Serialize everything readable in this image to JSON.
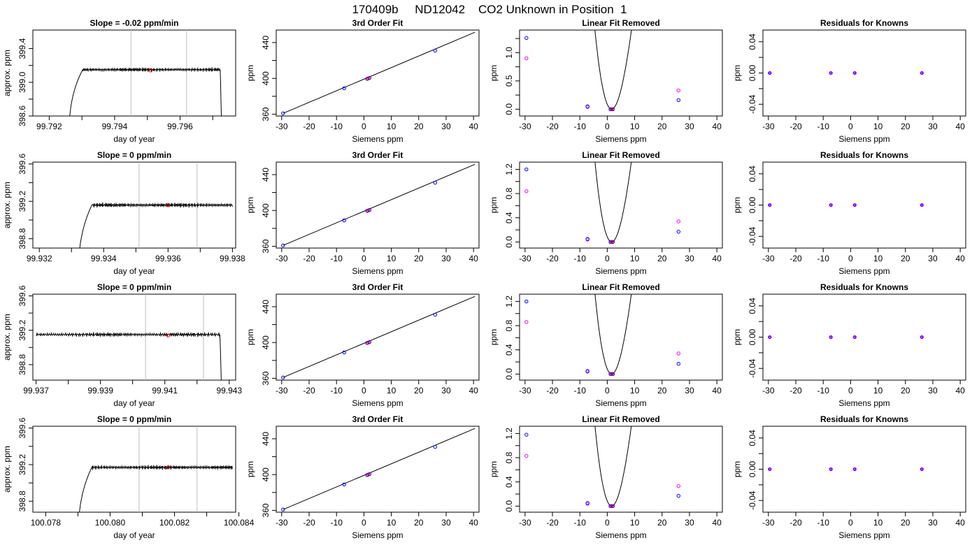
{
  "title": "170409b     ND12042    CO2 Unknown in Position  1",
  "colors": {
    "axis": "#000000",
    "curve": "#000000",
    "known_points": "#0000ff",
    "fit_points": "#ff00ff",
    "unknown_point": "#ff0000",
    "window_lines": "#bebebe"
  },
  "chart_data": [
    {
      "type": "line",
      "title": "Slope =  -0.02  ppm/min",
      "xlabel": "day of year",
      "ylabel": "approx. ppm",
      "xlim": [
        99.7915,
        99.7977
      ],
      "ylim": [
        398.6,
        399.62
      ],
      "xticks": [
        99.792,
        99.794,
        99.796
      ],
      "xtick_labels": [
        "99.792",
        "99.794",
        "99.796"
      ],
      "xminor_ticks": [
        99.793,
        99.795,
        99.797
      ],
      "yticks": [
        398.6,
        399.0,
        399.4
      ],
      "ytick_labels": [
        "398.6",
        "399.0",
        "399.4"
      ],
      "yminor_ticks": [
        398.8,
        399.2
      ],
      "window_lines": [
        99.7945,
        99.7962
      ],
      "trace_start": 99.7926,
      "trace_end": 99.7973,
      "plateau": 399.15,
      "mean_point": {
        "x": 99.7951,
        "y": 399.14
      },
      "grid": false
    },
    {
      "type": "scatter",
      "title": "3rd Order Fit",
      "xlabel": "Siemens ppm",
      "ylabel": "ppm",
      "xlim": [
        -32,
        42
      ],
      "ylim": [
        358,
        454
      ],
      "xticks": [
        -30,
        -20,
        -10,
        0,
        10,
        20,
        30,
        40
      ],
      "xtick_labels": [
        "-30",
        "-20",
        "-10",
        "0",
        "10",
        "20",
        "30",
        "40"
      ],
      "yticks": [
        360,
        400,
        440
      ],
      "ytick_labels": [
        "360",
        "400",
        "440"
      ],
      "yminor_ticks": [
        380,
        420
      ],
      "fit_line": [
        {
          "x": -29.5,
          "y": 361
        },
        {
          "x": 40.5,
          "y": 451.5
        }
      ],
      "points": [
        {
          "x": -29.5,
          "y": 361
        },
        {
          "x": -7.2,
          "y": 389
        },
        {
          "x": 1.2,
          "y": 399.5
        },
        {
          "x": 2.0,
          "y": 400.5
        },
        {
          "x": 26,
          "y": 431
        }
      ],
      "unknown": {
        "x": 1.6,
        "y": 400
      },
      "grid": false
    },
    {
      "type": "scatter",
      "title": "Linear Fit Removed",
      "xlabel": "Siemens ppm",
      "ylabel": "ppm",
      "xlim": [
        -32,
        42
      ],
      "ylim": [
        -0.12,
        1.4
      ],
      "xticks": [
        -30,
        -20,
        -10,
        0,
        10,
        20,
        30,
        40
      ],
      "xtick_labels": [
        "-30",
        "-20",
        "-10",
        "0",
        "10",
        "20",
        "30",
        "40"
      ],
      "yticks": [
        0.0,
        0.5,
        1.0
      ],
      "ytick_labels": [
        "0.0",
        "0.5",
        "1.0"
      ],
      "yminor_ticks": [
        0.25,
        0.75,
        1.25
      ],
      "cubic": {
        "A": 0.0009,
        "r1": 1.6,
        "r2": 26,
        "x_start": -29.6,
        "x_end": 40.5
      },
      "known_points": [
        {
          "x": -29.5,
          "y": 1.26
        },
        {
          "x": -7.2,
          "y": 0.05
        },
        {
          "x": 1.2,
          "y": 0.0
        },
        {
          "x": 2.0,
          "y": 0.0
        },
        {
          "x": 26,
          "y": 0.16
        }
      ],
      "fit_points": [
        {
          "x": -29.5,
          "y": 0.9
        },
        {
          "x": -7.2,
          "y": 0.04
        },
        {
          "x": 1.2,
          "y": 0.0
        },
        {
          "x": 2.0,
          "y": 0.0
        },
        {
          "x": 26,
          "y": 0.33
        }
      ],
      "unknown": {
        "x": 1.6,
        "y": 0.0
      },
      "grid": false
    },
    {
      "type": "scatter",
      "title": "Residuals for Knowns",
      "xlabel": "Siemens ppm",
      "ylabel": "ppm",
      "xlim": [
        -32,
        42
      ],
      "ylim": [
        -0.055,
        0.055
      ],
      "xticks": [
        -30,
        -20,
        -10,
        0,
        10,
        20,
        30,
        40
      ],
      "xtick_labels": [
        "-30",
        "-20",
        "-10",
        "0",
        "10",
        "20",
        "30",
        "40"
      ],
      "yticks": [
        -0.04,
        0.0,
        0.04
      ],
      "ytick_labels": [
        "-0.04",
        "0.00",
        "0.04"
      ],
      "yminor_ticks": [
        -0.02,
        0.02
      ],
      "points": [
        {
          "x": -29.5,
          "y": 0
        },
        {
          "x": -7.2,
          "y": 0
        },
        {
          "x": 1.5,
          "y": 0
        },
        {
          "x": 26,
          "y": 0
        }
      ],
      "grid": false
    },
    {
      "type": "line",
      "title": "Slope =  0  ppm/min",
      "xlabel": "day of year",
      "ylabel": "approx. ppm",
      "xlim": [
        99.9318,
        99.9381
      ],
      "ylim": [
        398.7,
        399.62
      ],
      "xticks": [
        99.932,
        99.934,
        99.936,
        99.938
      ],
      "xtick_labels": [
        "99.932",
        "99.934",
        "99.936",
        "99.938"
      ],
      "xminor_ticks": [
        99.933,
        99.935,
        99.937
      ],
      "yticks": [
        398.8,
        399.2,
        399.6
      ],
      "ytick_labels": [
        "398.8",
        "399.2",
        "399.6"
      ],
      "yminor_ticks": [
        399.0,
        399.4
      ],
      "window_lines": [
        99.9351,
        99.9369
      ],
      "trace_start": 99.9332,
      "trace_end": 99.938,
      "plateau": 399.16,
      "mean_point": {
        "x": 99.936,
        "y": 399.16
      },
      "grid": false
    },
    {
      "type": "scatter",
      "title": "3rd Order Fit",
      "xlabel": "Siemens ppm",
      "ylabel": "ppm",
      "xlim": [
        -32,
        42
      ],
      "ylim": [
        358,
        454
      ],
      "xticks": [
        -30,
        -20,
        -10,
        0,
        10,
        20,
        30,
        40
      ],
      "xtick_labels": [
        "-30",
        "-20",
        "-10",
        "0",
        "10",
        "20",
        "30",
        "40"
      ],
      "yticks": [
        360,
        400,
        440
      ],
      "ytick_labels": [
        "360",
        "400",
        "440"
      ],
      "yminor_ticks": [
        380,
        420
      ],
      "fit_line": [
        {
          "x": -29.5,
          "y": 361
        },
        {
          "x": 40.5,
          "y": 451.5
        }
      ],
      "points": [
        {
          "x": -29.5,
          "y": 361
        },
        {
          "x": -7.2,
          "y": 389
        },
        {
          "x": 1.2,
          "y": 399.5
        },
        {
          "x": 2.0,
          "y": 400.5
        },
        {
          "x": 26,
          "y": 431
        }
      ],
      "unknown": {
        "x": 1.6,
        "y": 400
      },
      "grid": false
    },
    {
      "type": "scatter",
      "title": "Linear Fit Removed",
      "xlabel": "Siemens ppm",
      "ylabel": "ppm",
      "xlim": [
        -32,
        42
      ],
      "ylim": [
        -0.1,
        1.32
      ],
      "xticks": [
        -30,
        -20,
        -10,
        0,
        10,
        20,
        30,
        40
      ],
      "xtick_labels": [
        "-30",
        "-20",
        "-10",
        "0",
        "10",
        "20",
        "30",
        "40"
      ],
      "yticks": [
        0.0,
        0.4,
        0.8,
        1.2
      ],
      "ytick_labels": [
        "0.0",
        "0.4",
        "0.8",
        "1.2"
      ],
      "yminor_ticks": [
        0.2,
        0.6,
        1.0
      ],
      "cubic": {
        "A": 0.00086,
        "r1": 1.6,
        "r2": 26,
        "x_start": -29.6,
        "x_end": 40.5
      },
      "known_points": [
        {
          "x": -29.5,
          "y": 1.2
        },
        {
          "x": -7.2,
          "y": 0.05
        },
        {
          "x": 1.2,
          "y": 0.0
        },
        {
          "x": 2.0,
          "y": 0.0
        },
        {
          "x": 26,
          "y": 0.17
        }
      ],
      "fit_points": [
        {
          "x": -29.5,
          "y": 0.84
        },
        {
          "x": -7.2,
          "y": 0.04
        },
        {
          "x": 1.2,
          "y": 0.0
        },
        {
          "x": 2.0,
          "y": 0.0
        },
        {
          "x": 26,
          "y": 0.34
        }
      ],
      "unknown": {
        "x": 1.6,
        "y": 0.0
      },
      "grid": false
    },
    {
      "type": "scatter",
      "title": "Residuals for Knowns",
      "xlabel": "Siemens ppm",
      "ylabel": "ppm",
      "xlim": [
        -32,
        42
      ],
      "ylim": [
        -0.055,
        0.055
      ],
      "xticks": [
        -30,
        -20,
        -10,
        0,
        10,
        20,
        30,
        40
      ],
      "xtick_labels": [
        "-30",
        "-20",
        "-10",
        "0",
        "10",
        "20",
        "30",
        "40"
      ],
      "yticks": [
        -0.04,
        0.0,
        0.04
      ],
      "ytick_labels": [
        "-0.04",
        "0.00",
        "0.04"
      ],
      "yminor_ticks": [
        -0.02,
        0.02
      ],
      "points": [
        {
          "x": -29.5,
          "y": 0
        },
        {
          "x": -7.2,
          "y": 0
        },
        {
          "x": 1.5,
          "y": 0
        },
        {
          "x": 26,
          "y": 0
        }
      ],
      "grid": false
    },
    {
      "type": "line",
      "title": "Slope =  0  ppm/min",
      "xlabel": "day of year",
      "ylabel": "approx. ppm",
      "xlim": [
        99.9369,
        99.9432
      ],
      "ylim": [
        398.62,
        399.62
      ],
      "xticks": [
        99.937,
        99.939,
        99.941,
        99.943
      ],
      "xtick_labels": [
        "99.937",
        "99.939",
        "99.941",
        "99.943"
      ],
      "xminor_ticks": [
        99.938,
        99.94,
        99.942
      ],
      "yticks": [
        398.8,
        399.2,
        399.6
      ],
      "ytick_labels": [
        "398.8",
        "399.2",
        "399.6"
      ],
      "yminor_ticks": [
        399.0,
        399.4
      ],
      "window_lines": [
        99.9404,
        99.9422
      ],
      "trace_start": 99.937,
      "trace_end": 99.9428,
      "plateau": 399.15,
      "mean_point": {
        "x": 99.9411,
        "y": 399.14
      },
      "grid": false
    },
    {
      "type": "scatter",
      "title": "3rd Order Fit",
      "xlabel": "Siemens ppm",
      "ylabel": "ppm",
      "xlim": [
        -32,
        42
      ],
      "ylim": [
        358,
        454
      ],
      "xticks": [
        -30,
        -20,
        -10,
        0,
        10,
        20,
        30,
        40
      ],
      "xtick_labels": [
        "-30",
        "-20",
        "-10",
        "0",
        "10",
        "20",
        "30",
        "40"
      ],
      "yticks": [
        360,
        400,
        440
      ],
      "ytick_labels": [
        "360",
        "400",
        "440"
      ],
      "yminor_ticks": [
        380,
        420
      ],
      "fit_line": [
        {
          "x": -29.5,
          "y": 361
        },
        {
          "x": 40.5,
          "y": 451.5
        }
      ],
      "points": [
        {
          "x": -29.5,
          "y": 361
        },
        {
          "x": -7.2,
          "y": 389
        },
        {
          "x": 1.2,
          "y": 399.5
        },
        {
          "x": 2.0,
          "y": 400.5
        },
        {
          "x": 26,
          "y": 431
        }
      ],
      "unknown": {
        "x": 1.6,
        "y": 400
      },
      "grid": false
    },
    {
      "type": "scatter",
      "title": "Linear Fit Removed",
      "xlabel": "Siemens ppm",
      "ylabel": "ppm",
      "xlim": [
        -32,
        42
      ],
      "ylim": [
        -0.1,
        1.32
      ],
      "xticks": [
        -30,
        -20,
        -10,
        0,
        10,
        20,
        30,
        40
      ],
      "xtick_labels": [
        "-30",
        "-20",
        "-10",
        "0",
        "10",
        "20",
        "30",
        "40"
      ],
      "yticks": [
        0.0,
        0.4,
        0.8,
        1.2
      ],
      "ytick_labels": [
        "0.0",
        "0.4",
        "0.8",
        "1.2"
      ],
      "yminor_ticks": [
        0.2,
        0.6,
        1.0
      ],
      "cubic": {
        "A": 0.00086,
        "r1": 1.6,
        "r2": 26,
        "x_start": -29.6,
        "x_end": 40.5
      },
      "known_points": [
        {
          "x": -29.5,
          "y": 1.2
        },
        {
          "x": -7.2,
          "y": 0.05
        },
        {
          "x": 1.2,
          "y": 0.0
        },
        {
          "x": 2.0,
          "y": 0.0
        },
        {
          "x": 26,
          "y": 0.17
        }
      ],
      "fit_points": [
        {
          "x": -29.5,
          "y": 0.86
        },
        {
          "x": -7.2,
          "y": 0.04
        },
        {
          "x": 1.2,
          "y": 0.0
        },
        {
          "x": 2.0,
          "y": 0.0
        },
        {
          "x": 26,
          "y": 0.34
        }
      ],
      "unknown": {
        "x": 1.6,
        "y": 0.0
      },
      "grid": false
    },
    {
      "type": "scatter",
      "title": "Residuals for Knowns",
      "xlabel": "Siemens ppm",
      "ylabel": "ppm",
      "xlim": [
        -32,
        42
      ],
      "ylim": [
        -0.055,
        0.055
      ],
      "xticks": [
        -30,
        -20,
        -10,
        0,
        10,
        20,
        30,
        40
      ],
      "xtick_labels": [
        "-30",
        "-20",
        "-10",
        "0",
        "10",
        "20",
        "30",
        "40"
      ],
      "yticks": [
        -0.04,
        0.0,
        0.04
      ],
      "ytick_labels": [
        "-0.04",
        "0.00",
        "0.04"
      ],
      "yminor_ticks": [
        -0.02,
        0.02
      ],
      "points": [
        {
          "x": -29.5,
          "y": 0
        },
        {
          "x": -7.2,
          "y": 0
        },
        {
          "x": 1.5,
          "y": 0
        },
        {
          "x": 26,
          "y": 0
        }
      ],
      "grid": false
    },
    {
      "type": "line",
      "title": "Slope =  0  ppm/min",
      "xlabel": "day of year",
      "ylabel": "approx. ppm",
      "xlim": [
        100.0776,
        100.0839
      ],
      "ylim": [
        398.68,
        399.62
      ],
      "xticks": [
        100.078,
        100.08,
        100.082,
        100.084
      ],
      "xtick_labels": [
        "100.078",
        "100.080",
        "100.082",
        "100.084"
      ],
      "xminor_ticks": [
        100.079,
        100.081,
        100.083
      ],
      "yticks": [
        398.8,
        399.2,
        399.6
      ],
      "ytick_labels": [
        "398.8",
        "399.2",
        "399.6"
      ],
      "yminor_ticks": [
        399.0,
        399.4
      ],
      "window_lines": [
        100.0809,
        100.0827
      ],
      "trace_start": 100.079,
      "trace_end": 100.0838,
      "plateau": 399.17,
      "mean_point": {
        "x": 100.0818,
        "y": 399.17
      },
      "grid": false
    },
    {
      "type": "scatter",
      "title": "3rd Order Fit",
      "xlabel": "Siemens ppm",
      "ylabel": "ppm",
      "xlim": [
        -32,
        42
      ],
      "ylim": [
        358,
        454
      ],
      "xticks": [
        -30,
        -20,
        -10,
        0,
        10,
        20,
        30,
        40
      ],
      "xtick_labels": [
        "-30",
        "-20",
        "-10",
        "0",
        "10",
        "20",
        "30",
        "40"
      ],
      "yticks": [
        360,
        400,
        440
      ],
      "ytick_labels": [
        "360",
        "400",
        "440"
      ],
      "yminor_ticks": [
        380,
        420
      ],
      "fit_line": [
        {
          "x": -29.5,
          "y": 361
        },
        {
          "x": 40.5,
          "y": 451.5
        }
      ],
      "points": [
        {
          "x": -29.5,
          "y": 361
        },
        {
          "x": -7.2,
          "y": 389
        },
        {
          "x": 1.2,
          "y": 399.5
        },
        {
          "x": 2.0,
          "y": 400.5
        },
        {
          "x": 26,
          "y": 431
        }
      ],
      "unknown": {
        "x": 1.6,
        "y": 400
      },
      "grid": false
    },
    {
      "type": "scatter",
      "title": "Linear Fit Removed",
      "xlabel": "Siemens ppm",
      "ylabel": "ppm",
      "xlim": [
        -32,
        42
      ],
      "ylim": [
        -0.1,
        1.32
      ],
      "xticks": [
        -30,
        -20,
        -10,
        0,
        10,
        20,
        30,
        40
      ],
      "xtick_labels": [
        "-30",
        "-20",
        "-10",
        "0",
        "10",
        "20",
        "30",
        "40"
      ],
      "yticks": [
        0.0,
        0.4,
        0.8,
        1.2
      ],
      "ytick_labels": [
        "0.0",
        "0.4",
        "0.8",
        "1.2"
      ],
      "yminor_ticks": [
        0.2,
        0.6,
        1.0
      ],
      "cubic": {
        "A": 0.00086,
        "r1": 1.6,
        "r2": 26,
        "x_start": -29.6,
        "x_end": 40.5
      },
      "known_points": [
        {
          "x": -29.5,
          "y": 1.18
        },
        {
          "x": -7.2,
          "y": 0.05
        },
        {
          "x": 1.2,
          "y": 0.0
        },
        {
          "x": 2.0,
          "y": 0.0
        },
        {
          "x": 26,
          "y": 0.17
        }
      ],
      "fit_points": [
        {
          "x": -29.5,
          "y": 0.83
        },
        {
          "x": -7.2,
          "y": 0.04
        },
        {
          "x": 1.2,
          "y": 0.0
        },
        {
          "x": 2.0,
          "y": 0.0
        },
        {
          "x": 26,
          "y": 0.33
        }
      ],
      "unknown": {
        "x": 1.6,
        "y": 0.0
      },
      "grid": false
    },
    {
      "type": "scatter",
      "title": "Residuals for Knowns",
      "xlabel": "Siemens ppm",
      "ylabel": "ppm",
      "xlim": [
        -32,
        42
      ],
      "ylim": [
        -0.055,
        0.055
      ],
      "xticks": [
        -30,
        -20,
        -10,
        0,
        10,
        20,
        30,
        40
      ],
      "xtick_labels": [
        "-30",
        "-20",
        "-10",
        "0",
        "10",
        "20",
        "30",
        "40"
      ],
      "yticks": [
        -0.04,
        0.0,
        0.04
      ],
      "ytick_labels": [
        "-0.04",
        "0.00",
        "0.04"
      ],
      "yminor_ticks": [
        -0.02,
        0.02
      ],
      "points": [
        {
          "x": -29.5,
          "y": 0
        },
        {
          "x": -7.2,
          "y": 0
        },
        {
          "x": 1.5,
          "y": 0
        },
        {
          "x": 26,
          "y": 0
        }
      ],
      "grid": false
    }
  ]
}
